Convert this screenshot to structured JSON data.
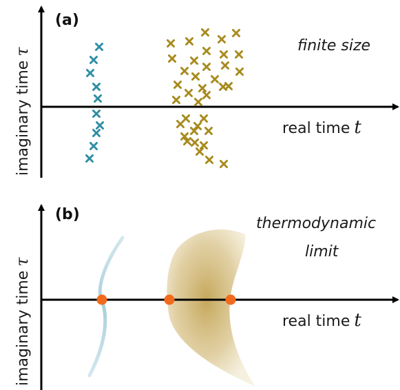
{
  "panel_a": {
    "label": "(a)",
    "ylabel": "imaginary time",
    "ysymbol": "τ",
    "xlabel": "real time",
    "xsymbol": "t",
    "note": "finite size",
    "colors": {
      "teal": "#2f8ea3",
      "gold": "#a78a1c"
    }
  },
  "panel_b": {
    "label": "(b)",
    "ylabel": "imaginary time",
    "ysymbol": "τ",
    "xlabel": "real time",
    "xsymbol": "t",
    "note_line1": "thermodynamic",
    "note_line2": "limit",
    "colors": {
      "curve": "#bcd9e3",
      "region": "#c9ad63",
      "dot": "#f26b1d"
    }
  }
}
